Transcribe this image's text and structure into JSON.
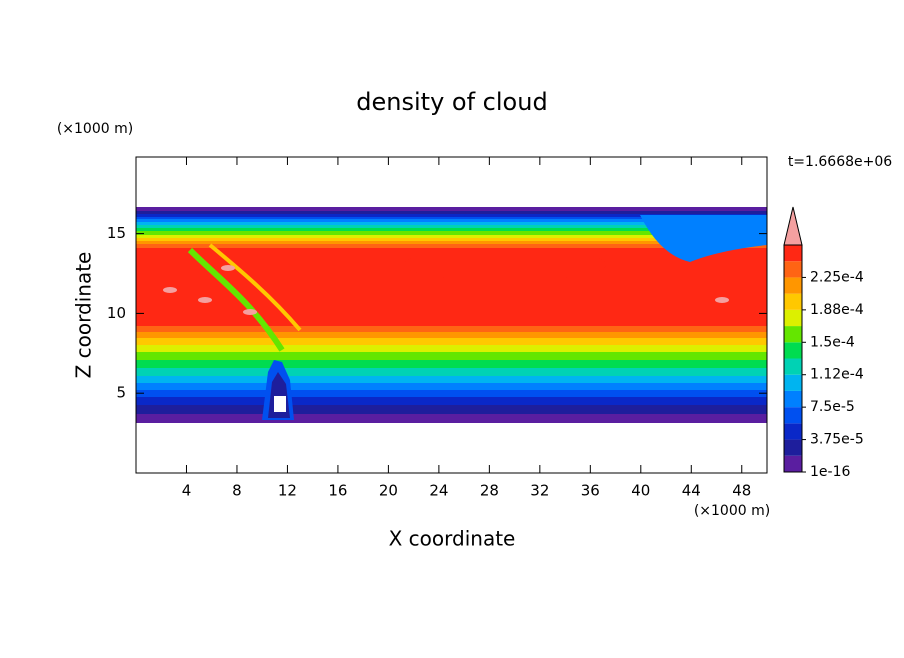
{
  "chart_data": {
    "type": "contour",
    "title": "density of cloud",
    "xlabel": "X coordinate",
    "ylabel": "Z coordinate",
    "x_unit_label": "(×1000 m)",
    "y_unit_label": "(×1000 m)",
    "time_label": "t=1.6668e+06",
    "xlim": [
      0,
      50
    ],
    "xticks": [
      4,
      8,
      12,
      16,
      20,
      24,
      28,
      32,
      36,
      40,
      44,
      48
    ],
    "ylim": [
      0,
      19.8
    ],
    "yticks": [
      5,
      10,
      15
    ],
    "colorbar": {
      "levels": [
        1e-16,
        {
          "value": 3.75e-05,
          "label": "3.75e-5"
        },
        {
          "value": 7.5e-05,
          "label": "7.5e-5"
        },
        {
          "value": 0.000112,
          "label": "1.12e-4"
        },
        {
          "value": 0.00015,
          "label": "1.5e-4"
        },
        {
          "value": 0.000188,
          "label": "1.88e-4"
        },
        {
          "value": 0.000225,
          "label": "2.25e-4"
        }
      ],
      "colors": [
        "#5a1ea0",
        "#1e1e9c",
        "#0a28c8",
        "#0050f0",
        "#0080ff",
        "#00b4f0",
        "#00d2b4",
        "#00dc50",
        "#64e600",
        "#dcf000",
        "#ffc800",
        "#ff9600",
        "#ff6414",
        "#ff2814"
      ],
      "extend_color": "#f4a0a0"
    }
  }
}
